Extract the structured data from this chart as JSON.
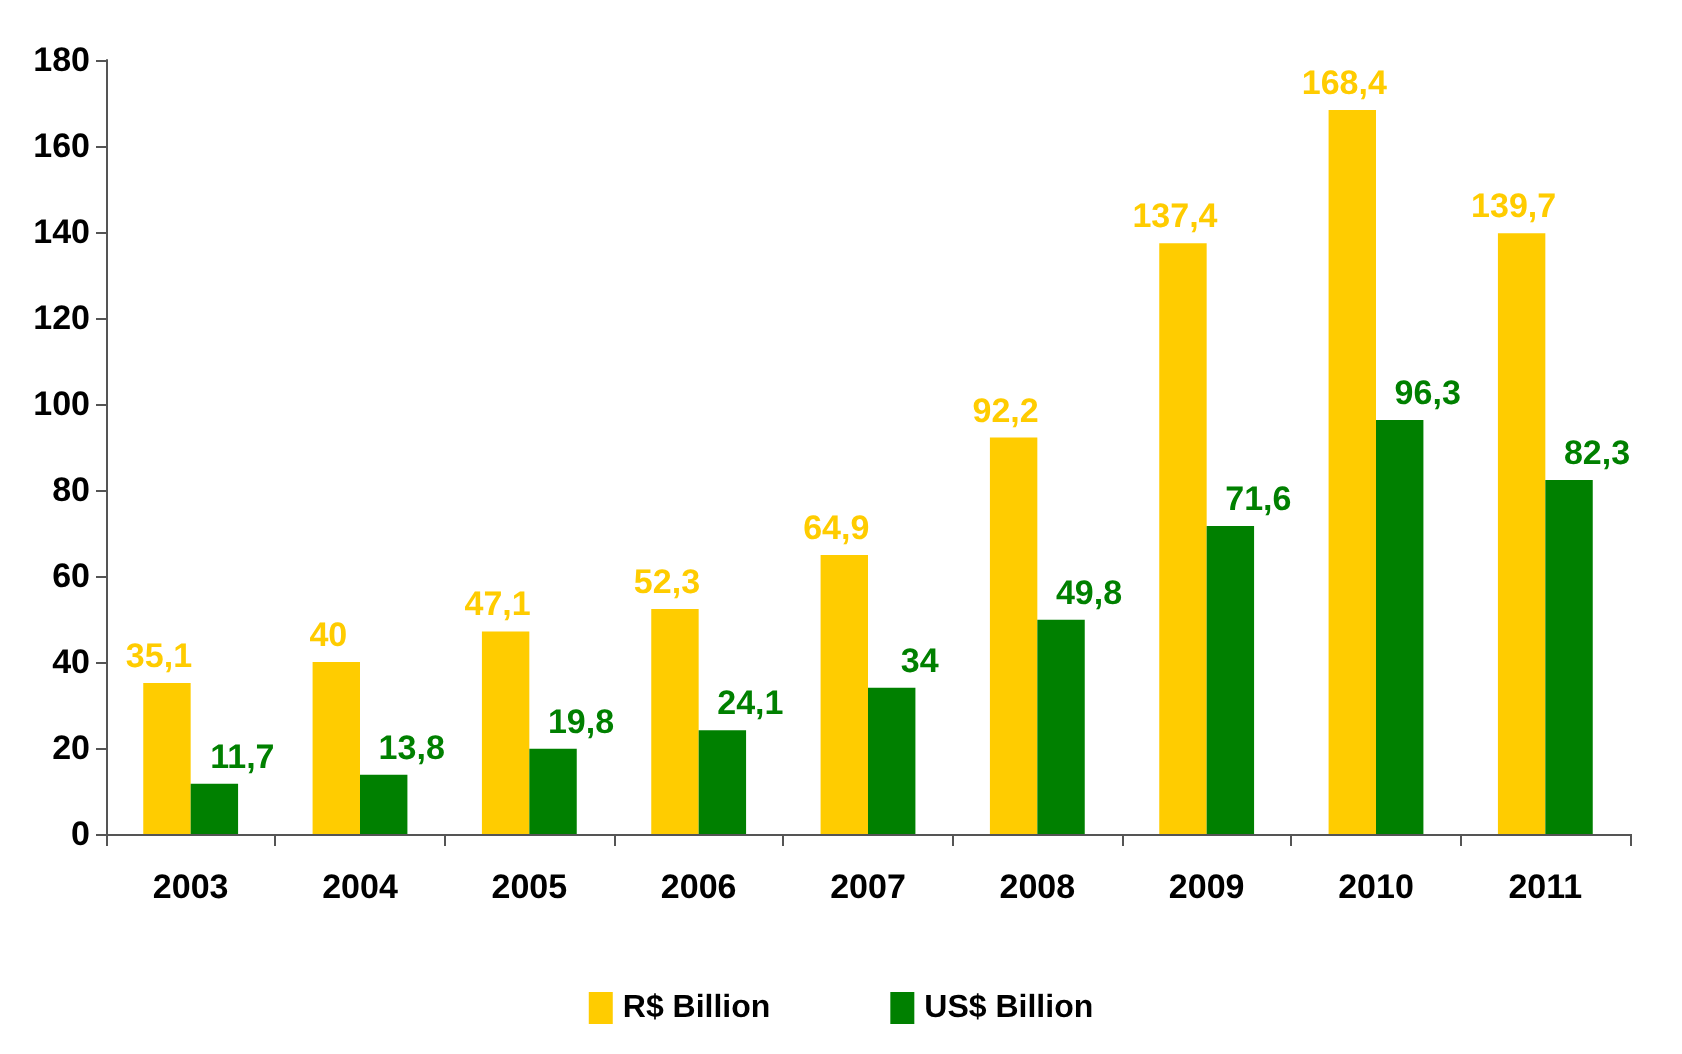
{
  "chart_data": {
    "type": "bar",
    "categories": [
      "2003",
      "2004",
      "2005",
      "2006",
      "2007",
      "2008",
      "2009",
      "2010",
      "2011"
    ],
    "series": [
      {
        "name": "R$ Billion",
        "color": "#ffcc00",
        "values": [
          35.1,
          40,
          47.1,
          52.3,
          64.9,
          92.2,
          137.4,
          168.4,
          139.7
        ],
        "value_labels": [
          "35,1",
          "40",
          "47,1",
          "52,3",
          "64,9",
          "92,2",
          "137,4",
          "168,4",
          "139,7"
        ]
      },
      {
        "name": "US$ Billion",
        "color": "#008000",
        "values": [
          11.7,
          13.8,
          19.8,
          24.1,
          34,
          49.8,
          71.6,
          96.3,
          82.3
        ],
        "value_labels": [
          "11,7",
          "13,8",
          "19,8",
          "24,1",
          "34",
          "49,8",
          "71,6",
          "96,3",
          "82,3"
        ]
      }
    ],
    "ylim": [
      0,
      180
    ],
    "yticks": [
      0,
      20,
      40,
      60,
      80,
      100,
      120,
      140,
      160,
      180
    ],
    "grid": false,
    "legend": "bottom"
  }
}
